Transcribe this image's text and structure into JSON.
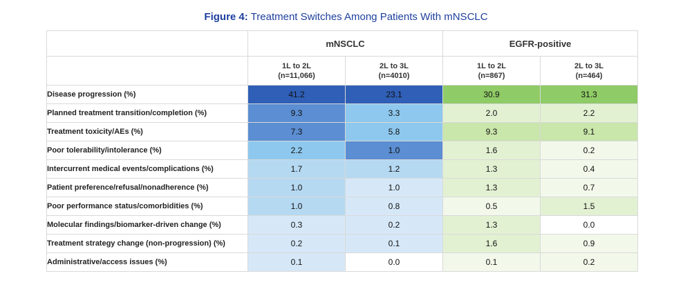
{
  "figure": {
    "label": "Figure 4:",
    "title": "Treatment Switches Among Patients With mNSCLC"
  },
  "colors": {
    "blue_scale": [
      "#ffffff",
      "#d6e8f8",
      "#b6d9f2",
      "#8ec8ee",
      "#5b8ed2",
      "#2f5fb6"
    ],
    "green_scale": [
      "#ffffff",
      "#f2f8ea",
      "#e3f1d3",
      "#c9e6ab",
      "#8fcb66"
    ]
  },
  "chart_data": {
    "type": "table",
    "title": "Treatment Switches Among Patients With mNSCLC",
    "groups": [
      {
        "name": "mNSCLC",
        "columns": [
          {
            "line": "1L to 2L",
            "n": "(n=11,066)"
          },
          {
            "line": "2L to 3L",
            "n": "(n=4010)"
          }
        ]
      },
      {
        "name": "EGFR-positive",
        "columns": [
          {
            "line": "1L to 2L",
            "n": "(n=867)"
          },
          {
            "line": "2L to 3L",
            "n": "(n=464)"
          }
        ]
      }
    ],
    "rows": [
      {
        "label": "Disease progression (%)",
        "values": [
          "41.2",
          "23.1",
          "30.9",
          "31.3"
        ],
        "shade": [
          5,
          5,
          4,
          4
        ]
      },
      {
        "label": "Planned treatment transition/completion (%)",
        "values": [
          "9.3",
          "3.3",
          "2.0",
          "2.2"
        ],
        "shade": [
          4,
          3,
          2,
          2
        ]
      },
      {
        "label": "Treatment toxicity/AEs (%)",
        "values": [
          "7.3",
          "5.8",
          "9.3",
          "9.1"
        ],
        "shade": [
          4,
          3,
          3,
          3
        ]
      },
      {
        "label": "Poor tolerability/intolerance (%)",
        "values": [
          "2.2",
          "1.0",
          "1.6",
          "0.2"
        ],
        "shade": [
          3,
          4,
          2,
          1
        ]
      },
      {
        "label": "Intercurrent medical events/complications (%)",
        "values": [
          "1.7",
          "1.2",
          "1.3",
          "0.4"
        ],
        "shade": [
          2,
          2,
          2,
          1
        ]
      },
      {
        "label": "Patient preference/refusal/nonadherence (%)",
        "values": [
          "1.0",
          "1.0",
          "1.3",
          "0.7"
        ],
        "shade": [
          2,
          1,
          2,
          1
        ]
      },
      {
        "label": "Poor performance status/comorbidities (%)",
        "values": [
          "1.0",
          "0.8",
          "0.5",
          "1.5"
        ],
        "shade": [
          2,
          1,
          1,
          2
        ]
      },
      {
        "label": "Molecular findings/biomarker-driven change (%)",
        "values": [
          "0.3",
          "0.2",
          "1.3",
          "0.0"
        ],
        "shade": [
          1,
          1,
          2,
          0
        ]
      },
      {
        "label": "Treatment strategy change (non-progression) (%)",
        "values": [
          "0.2",
          "0.1",
          "1.6",
          "0.9"
        ],
        "shade": [
          1,
          1,
          2,
          1
        ]
      },
      {
        "label": "Administrative/access issues (%)",
        "values": [
          "0.1",
          "0.0",
          "0.1",
          "0.2"
        ],
        "shade": [
          1,
          0,
          1,
          1
        ]
      }
    ]
  }
}
